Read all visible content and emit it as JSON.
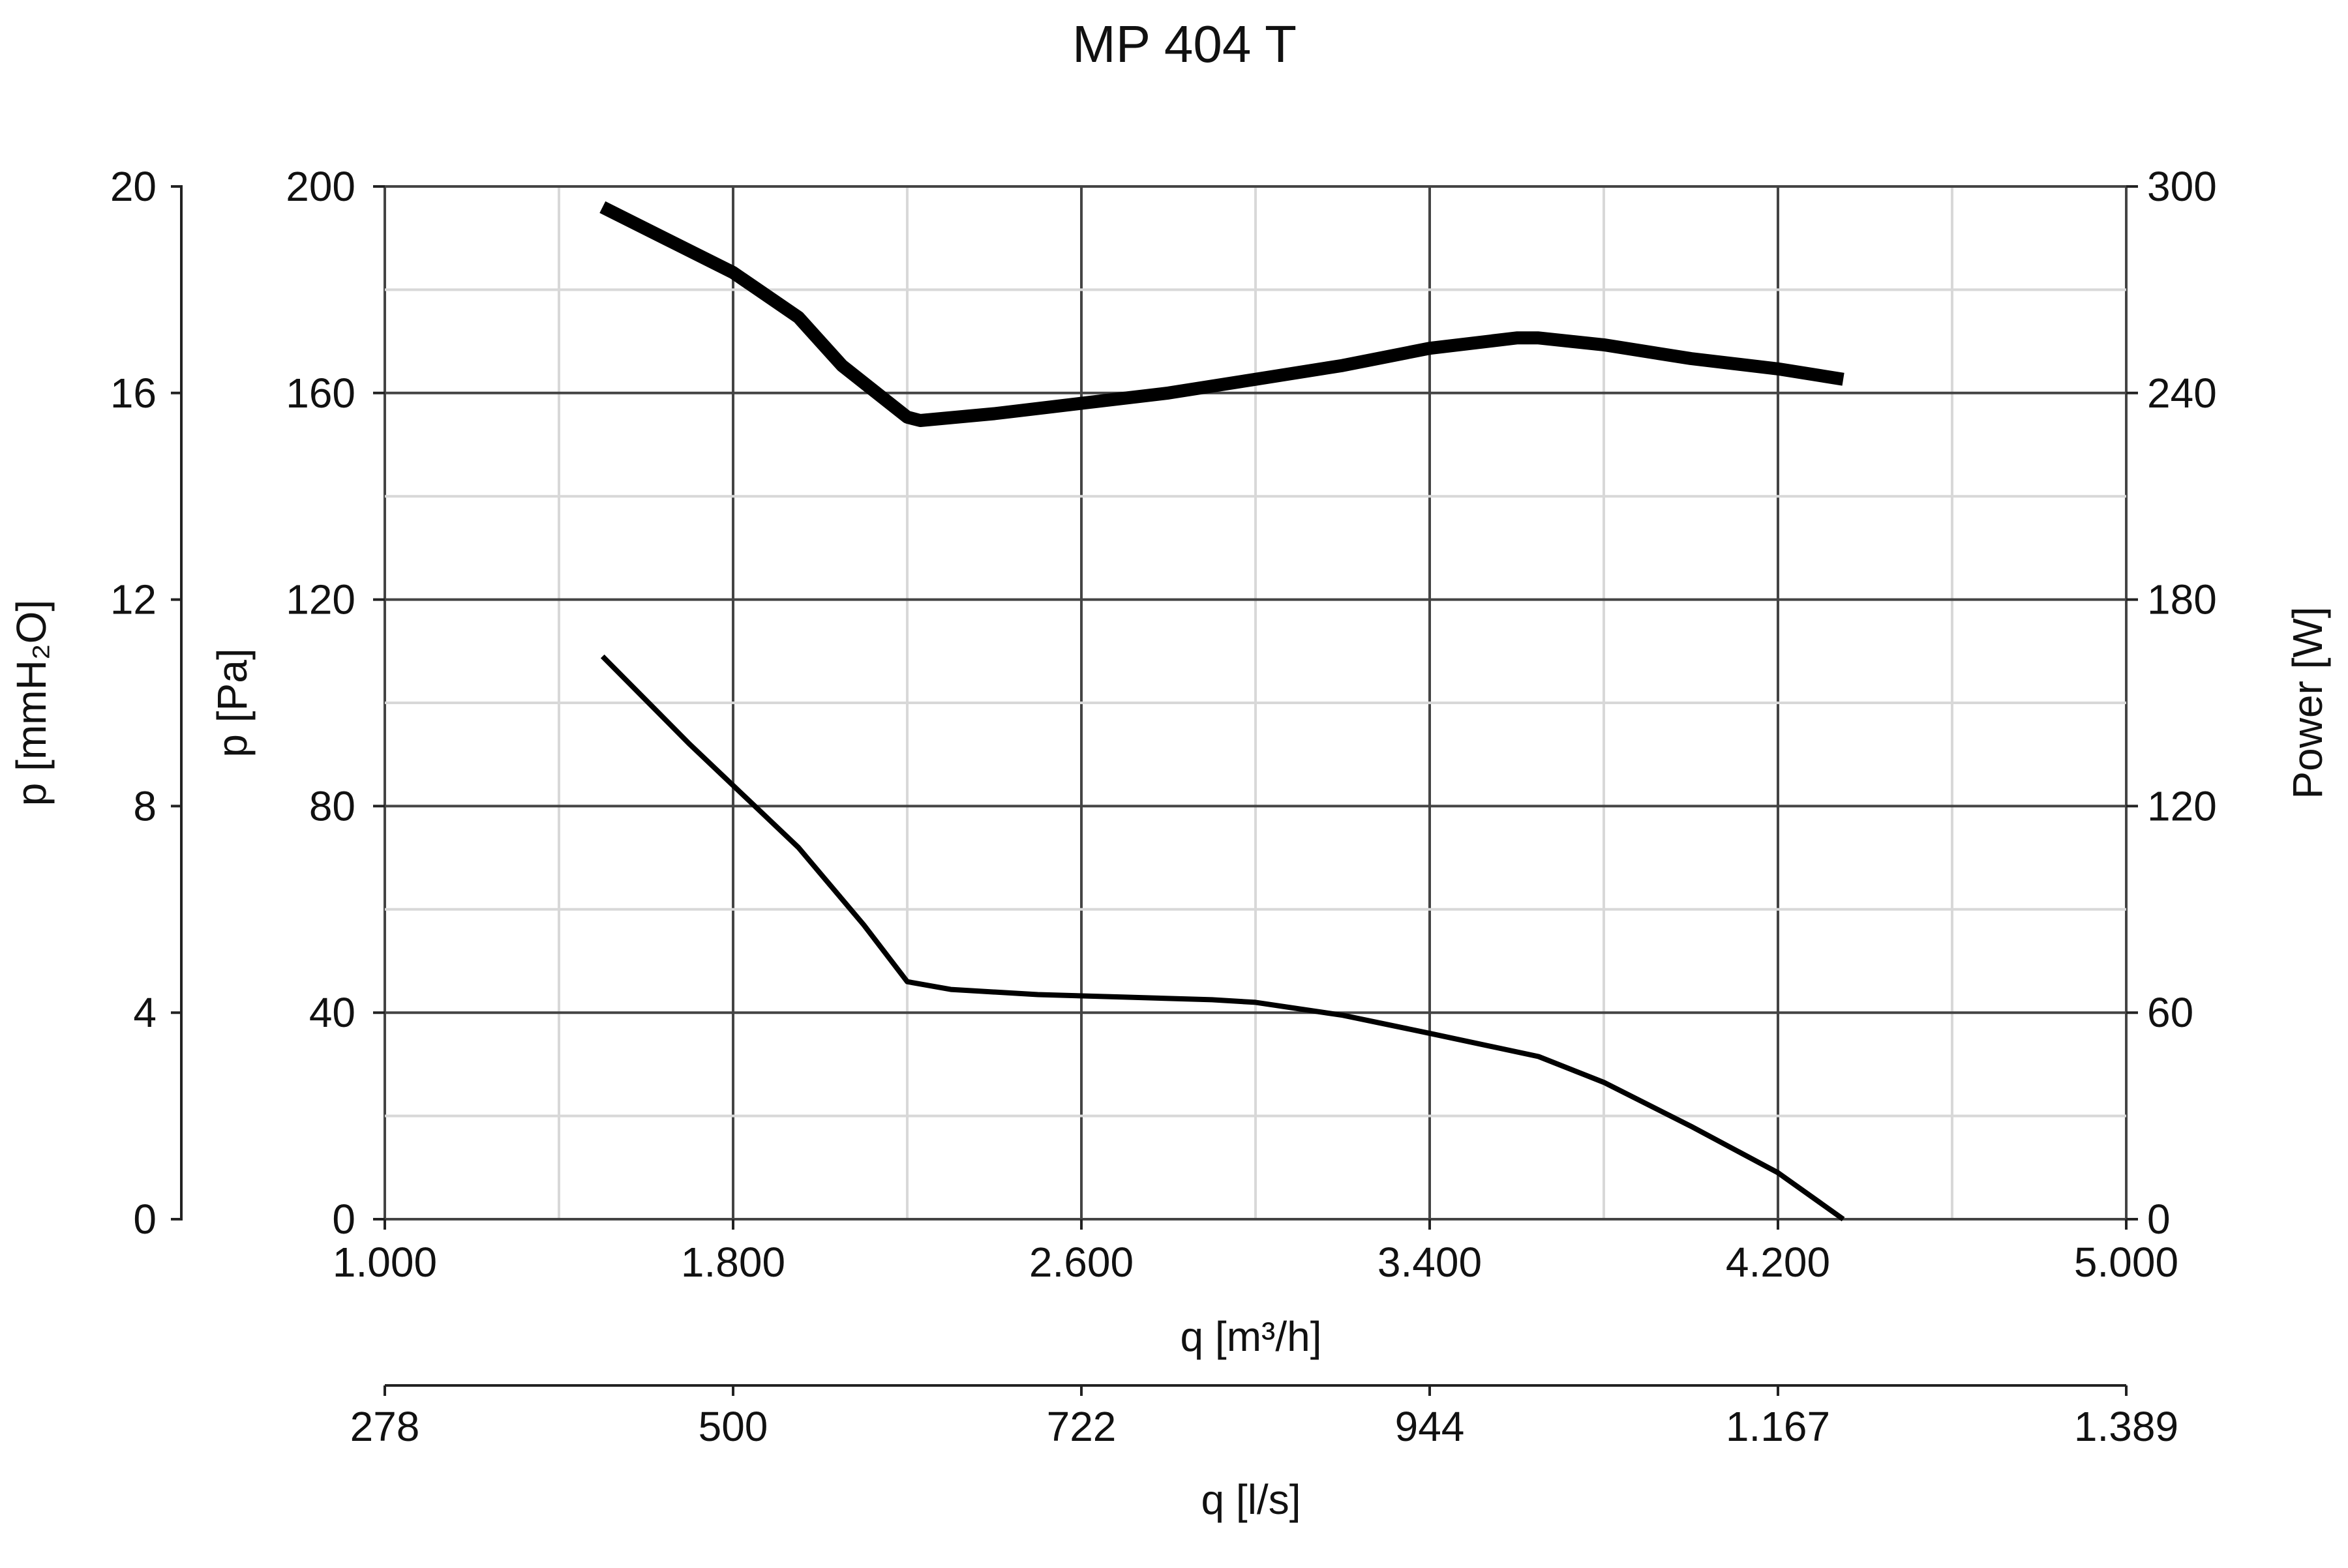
{
  "chart_data": {
    "type": "line",
    "title": "MP 404 T",
    "x_primary": {
      "label": "q [m³/h]",
      "range": [
        1000,
        5000
      ],
      "ticks": [
        1000,
        1800,
        2600,
        3400,
        4200,
        5000
      ],
      "tick_labels": [
        "1.000",
        "1.800",
        "2.600",
        "3.400",
        "4.200",
        "5.000"
      ]
    },
    "x_secondary": {
      "label": "q [l/s]",
      "tick_labels": [
        "278",
        "500",
        "722",
        "944",
        "1.167",
        "1.389"
      ]
    },
    "y_pressure_pa": {
      "label": "p [Pa]",
      "range": [
        0,
        200
      ],
      "tick_labels": [
        "0",
        "40",
        "80",
        "120",
        "160",
        "200"
      ]
    },
    "y_pressure_mmh2o": {
      "label": "p [mmH₂O]",
      "range": [
        0,
        20
      ],
      "tick_labels": [
        "0",
        "4",
        "8",
        "12",
        "16",
        "20"
      ]
    },
    "y_power": {
      "label": "Power [W]",
      "range": [
        0,
        300
      ],
      "tick_labels": [
        "0",
        "60",
        "120",
        "180",
        "240",
        "300"
      ]
    },
    "grid": true,
    "series": [
      {
        "axis": "power",
        "stroke": "#000000",
        "heavy": true,
        "x": [
          1500,
          1800,
          1950,
          2050,
          2200,
          2230,
          2400,
          2600,
          2800,
          3000,
          3200,
          3400,
          3600,
          3650,
          3800,
          4000,
          4200,
          4350
        ],
        "y": [
          294,
          275,
          262,
          248,
          233,
          232,
          234,
          237,
          240,
          244,
          248,
          253,
          256,
          256,
          254,
          250,
          247,
          244
        ]
      },
      {
        "axis": "pressure_pa",
        "stroke": "#000000",
        "heavy": false,
        "x": [
          1500,
          1700,
          1950,
          2100,
          2200,
          2300,
          2500,
          2700,
          2900,
          3000,
          3200,
          3400,
          3650,
          3800,
          4000,
          4200,
          4350
        ],
        "y": [
          109,
          92,
          72,
          57,
          46,
          44.5,
          43.5,
          43,
          42.5,
          42,
          39.5,
          36,
          31.5,
          26.5,
          18,
          9,
          0
        ]
      }
    ]
  }
}
